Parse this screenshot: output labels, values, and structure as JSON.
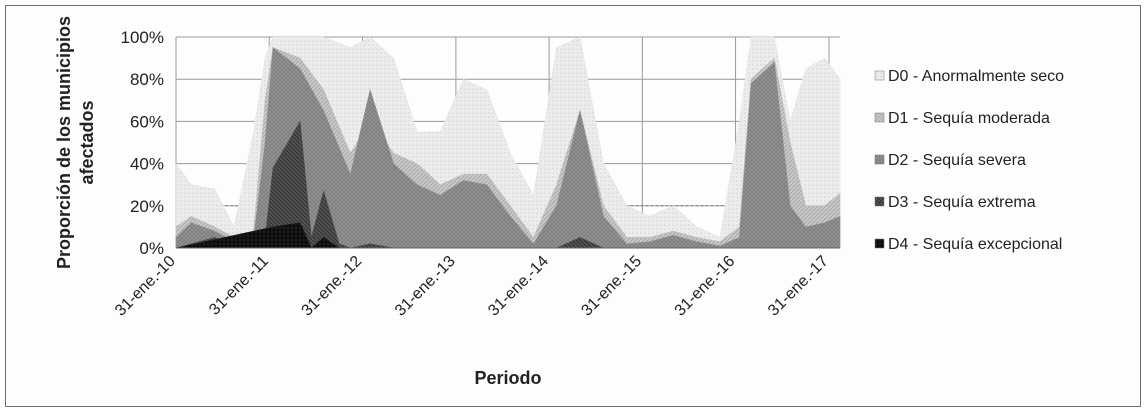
{
  "chart_data": {
    "type": "area",
    "title": "",
    "xlabel": "Periodo",
    "ylabel": "Proporción de los municipios afectados",
    "ylim": [
      0,
      100
    ],
    "y_ticks": [
      "0%",
      "20%",
      "40%",
      "60%",
      "80%",
      "100%"
    ],
    "x_ticks": [
      "31-ene.-10",
      "31-ene.-11",
      "31-ene.-12",
      "31-ene.-13",
      "31-ene.-14",
      "31-ene.-15",
      "31-ene.-16",
      "31-ene.-17"
    ],
    "x_range": [
      "2010-01-31",
      "2017-03-15"
    ],
    "grid": true,
    "legend_position": "right",
    "series": [
      {
        "name": "D0 - Anormalmente seco",
        "color": "#e6e6e6",
        "points": [
          [
            "2010-01-31",
            40
          ],
          [
            "2010-04-01",
            30
          ],
          [
            "2010-07-01",
            28
          ],
          [
            "2010-09-15",
            10
          ],
          [
            "2010-12-01",
            55
          ],
          [
            "2011-01-15",
            90
          ],
          [
            "2011-02-15",
            100
          ],
          [
            "2011-06-01",
            100
          ],
          [
            "2011-09-01",
            100
          ],
          [
            "2011-12-15",
            95
          ],
          [
            "2012-03-01",
            100
          ],
          [
            "2012-06-01",
            90
          ],
          [
            "2012-09-01",
            55
          ],
          [
            "2012-12-01",
            55
          ],
          [
            "2013-03-01",
            80
          ],
          [
            "2013-06-01",
            75
          ],
          [
            "2013-09-01",
            45
          ],
          [
            "2013-12-01",
            25
          ],
          [
            "2014-03-01",
            95
          ],
          [
            "2014-06-01",
            100
          ],
          [
            "2014-09-01",
            40
          ],
          [
            "2014-12-01",
            20
          ],
          [
            "2015-03-01",
            15
          ],
          [
            "2015-06-01",
            20
          ],
          [
            "2015-09-01",
            10
          ],
          [
            "2015-12-01",
            5
          ],
          [
            "2016-02-15",
            60
          ],
          [
            "2016-04-01",
            100
          ],
          [
            "2016-07-01",
            100
          ],
          [
            "2016-09-01",
            60
          ],
          [
            "2016-11-01",
            85
          ],
          [
            "2017-01-15",
            90
          ],
          [
            "2017-03-15",
            80
          ]
        ]
      },
      {
        "name": "D1 - Sequía moderada",
        "color": "#c0c0c0",
        "points": [
          [
            "2010-01-31",
            10
          ],
          [
            "2010-04-01",
            15
          ],
          [
            "2010-07-01",
            10
          ],
          [
            "2010-09-15",
            5
          ],
          [
            "2010-12-01",
            8
          ],
          [
            "2011-01-15",
            70
          ],
          [
            "2011-02-15",
            95
          ],
          [
            "2011-06-01",
            90
          ],
          [
            "2011-09-01",
            75
          ],
          [
            "2011-12-15",
            45
          ],
          [
            "2012-03-01",
            60
          ],
          [
            "2012-06-01",
            45
          ],
          [
            "2012-09-01",
            40
          ],
          [
            "2012-12-01",
            30
          ],
          [
            "2013-03-01",
            35
          ],
          [
            "2013-06-01",
            35
          ],
          [
            "2013-09-01",
            20
          ],
          [
            "2013-12-01",
            5
          ],
          [
            "2014-03-01",
            30
          ],
          [
            "2014-06-01",
            65
          ],
          [
            "2014-09-01",
            20
          ],
          [
            "2014-12-01",
            5
          ],
          [
            "2015-03-01",
            5
          ],
          [
            "2015-06-01",
            8
          ],
          [
            "2015-09-01",
            5
          ],
          [
            "2015-12-01",
            3
          ],
          [
            "2016-02-15",
            10
          ],
          [
            "2016-04-01",
            80
          ],
          [
            "2016-07-01",
            90
          ],
          [
            "2016-09-01",
            50
          ],
          [
            "2016-11-01",
            20
          ],
          [
            "2017-01-15",
            20
          ],
          [
            "2017-03-15",
            26
          ]
        ]
      },
      {
        "name": "D2 - Sequía severa",
        "color": "#939393",
        "points": [
          [
            "2010-01-31",
            5
          ],
          [
            "2010-04-01",
            12
          ],
          [
            "2010-07-01",
            8
          ],
          [
            "2010-09-15",
            3
          ],
          [
            "2010-12-01",
            4
          ],
          [
            "2011-01-15",
            50
          ],
          [
            "2011-02-15",
            95
          ],
          [
            "2011-06-01",
            85
          ],
          [
            "2011-09-01",
            65
          ],
          [
            "2011-12-15",
            35
          ],
          [
            "2012-03-01",
            75
          ],
          [
            "2012-06-01",
            40
          ],
          [
            "2012-09-01",
            30
          ],
          [
            "2012-12-01",
            25
          ],
          [
            "2013-03-01",
            32
          ],
          [
            "2013-06-01",
            30
          ],
          [
            "2013-09-01",
            15
          ],
          [
            "2013-12-01",
            2
          ],
          [
            "2014-03-01",
            20
          ],
          [
            "2014-06-01",
            65
          ],
          [
            "2014-09-01",
            15
          ],
          [
            "2014-12-01",
            2
          ],
          [
            "2015-03-01",
            3
          ],
          [
            "2015-06-01",
            6
          ],
          [
            "2015-09-01",
            3
          ],
          [
            "2015-12-01",
            1
          ],
          [
            "2016-02-15",
            5
          ],
          [
            "2016-04-01",
            78
          ],
          [
            "2016-07-01",
            88
          ],
          [
            "2016-09-01",
            20
          ],
          [
            "2016-11-01",
            10
          ],
          [
            "2017-01-15",
            12
          ],
          [
            "2017-03-15",
            15
          ]
        ]
      },
      {
        "name": "D3 - Sequía extrema",
        "color": "#4e4e4e",
        "points": [
          [
            "2010-01-31",
            0
          ],
          [
            "2010-04-01",
            2
          ],
          [
            "2010-07-01",
            5
          ],
          [
            "2010-09-15",
            0
          ],
          [
            "2010-12-01",
            0
          ],
          [
            "2011-01-15",
            5
          ],
          [
            "2011-02-15",
            38
          ],
          [
            "2011-06-01",
            60
          ],
          [
            "2011-07-15",
            5
          ],
          [
            "2011-09-01",
            27
          ],
          [
            "2011-11-01",
            2
          ],
          [
            "2011-12-15",
            0
          ],
          [
            "2012-03-01",
            2
          ],
          [
            "2012-06-01",
            0
          ],
          [
            "2012-09-01",
            0
          ],
          [
            "2012-12-01",
            0
          ],
          [
            "2013-03-01",
            0
          ],
          [
            "2013-06-01",
            0
          ],
          [
            "2013-09-01",
            0
          ],
          [
            "2013-12-01",
            0
          ],
          [
            "2014-03-01",
            0
          ],
          [
            "2014-06-01",
            5
          ],
          [
            "2014-09-01",
            0
          ],
          [
            "2014-12-01",
            0
          ],
          [
            "2015-03-01",
            0
          ],
          [
            "2015-06-01",
            0
          ],
          [
            "2015-09-01",
            0
          ],
          [
            "2015-12-01",
            0
          ],
          [
            "2016-02-15",
            0
          ],
          [
            "2016-04-01",
            0
          ],
          [
            "2016-07-01",
            0
          ],
          [
            "2016-09-01",
            0
          ],
          [
            "2016-11-01",
            0
          ],
          [
            "2017-01-15",
            0
          ],
          [
            "2017-03-15",
            0
          ]
        ]
      },
      {
        "name": "D4 - Sequía excepcional",
        "color": "#1e1e1e",
        "points": [
          [
            "2010-01-31",
            0
          ],
          [
            "2011-02-15",
            10
          ],
          [
            "2011-06-01",
            12
          ],
          [
            "2011-07-15",
            0
          ],
          [
            "2011-09-01",
            5
          ],
          [
            "2011-11-01",
            0
          ],
          [
            "2017-03-15",
            0
          ]
        ]
      }
    ]
  }
}
